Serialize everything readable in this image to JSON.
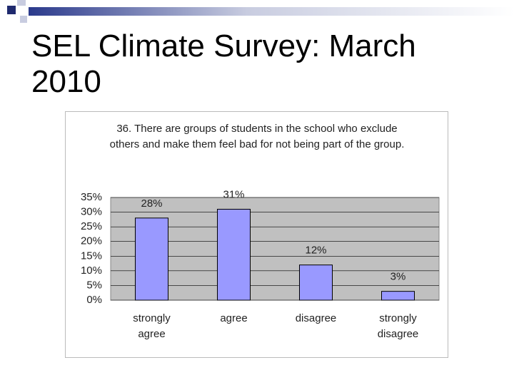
{
  "slide_title": "SEL Climate Survey: March 2010",
  "chart_data": {
    "type": "bar",
    "title": "36. There are groups of students in the school who exclude others and make them feel bad for not being part of the group.",
    "categories": [
      "strongly agree",
      "agree",
      "disagree",
      "strongly disagree"
    ],
    "values": [
      28,
      31,
      12,
      3
    ],
    "value_labels": [
      "28%",
      "31%",
      "12%",
      "3%"
    ],
    "color": "#9999ff",
    "ylim": [
      0,
      35
    ],
    "yticks": [
      {
        "value": 0,
        "label": "0%"
      },
      {
        "value": 5,
        "label": "5%"
      },
      {
        "value": 10,
        "label": "10%"
      },
      {
        "value": 15,
        "label": "15%"
      },
      {
        "value": 20,
        "label": "20%"
      },
      {
        "value": 25,
        "label": "25%"
      },
      {
        "value": 30,
        "label": "30%"
      },
      {
        "value": 35,
        "label": "35%"
      }
    ],
    "grid": true
  }
}
